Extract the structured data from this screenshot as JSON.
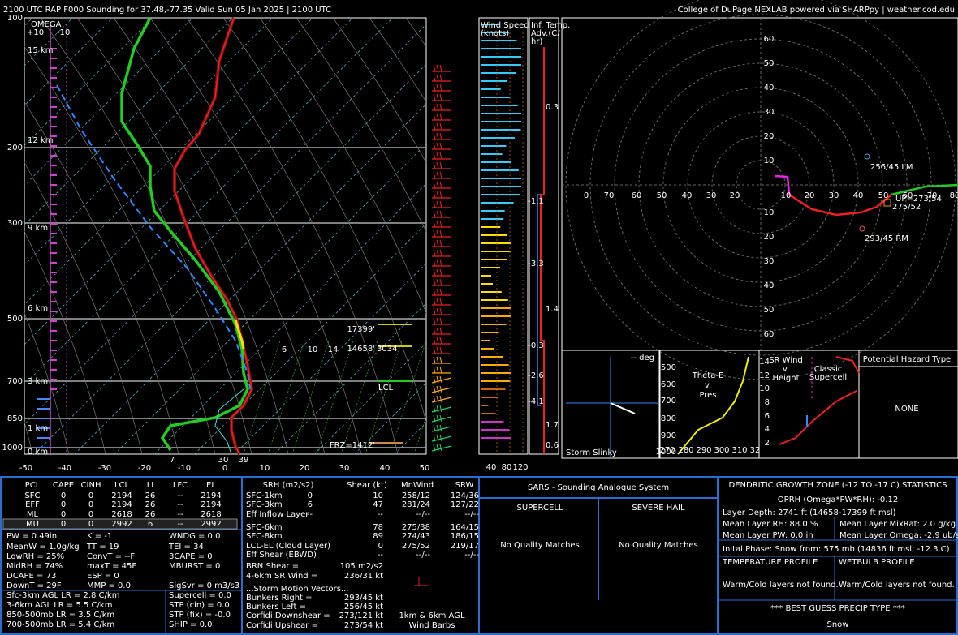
{
  "header": {
    "title": "2100 UTC RAP F000 Sounding for 37.48,-77.35 Valid  Sun 05 Jan 2025 | 2100 UTC",
    "credit": "College of DuPage NEXLAB powered via SHARPpy | weather.cod.edu"
  },
  "skewt": {
    "pressure_labels": [
      "100",
      "200",
      "300",
      "500",
      "700",
      "850",
      "1000"
    ],
    "temp_labels": [
      "-50",
      "-40",
      "-30",
      "-20",
      "-10",
      "0",
      "10",
      "20",
      "30",
      "40",
      "50"
    ],
    "height_labels": [
      "15 km",
      "12 km",
      "9 km",
      "6 km",
      "3 km",
      "1 km",
      "0 km"
    ],
    "omega": {
      "title": "OMEGA",
      "left": "+10",
      "right": "-10"
    },
    "surface": {
      "dewpoint": "7",
      "wetbulb": "30",
      "temp": "39"
    },
    "levels": {
      "el": "17399'",
      "lfc": "14658'",
      "lfc_extra": "3034",
      "lcl": "LCL",
      "frz": "FRZ=1412'"
    },
    "mixing_ratio_labels": [
      "6",
      "10",
      "14"
    ]
  },
  "wind_speed": {
    "title_lines": [
      "Wind Speed",
      "(knots)"
    ],
    "ticks": [
      "40",
      "80",
      "120"
    ]
  },
  "temp_adv": {
    "title_lines": [
      "Inf. Temp.",
      "Adv.(C/",
      "hr)"
    ],
    "labels": [
      "0.3",
      "-1.1",
      "-3.3",
      "1.4",
      "-0.3",
      "-2.6",
      "-4.1",
      "1.7",
      "0.6"
    ]
  },
  "hodograph": {
    "y_labels": [
      "60",
      "50",
      "40",
      "30",
      "20",
      "10",
      "10",
      "20",
      "30",
      "40",
      "50",
      "60"
    ],
    "x_labels": [
      "0",
      "70",
      "60",
      "50",
      "40",
      "30",
      "20",
      "10",
      "20",
      "30",
      "40",
      "50",
      "60",
      "70",
      "80"
    ],
    "left_mover": "256/45 LM",
    "right_mover": "293/45 RM",
    "mean_wind": "275/52",
    "upshear": "UP=273/54"
  },
  "slinky": {
    "deg": "-- deg",
    "title": "Storm Slinky"
  },
  "theta_e": {
    "title_lines": [
      "Theta-E",
      "v.",
      "Pres"
    ],
    "y_labels": [
      "500",
      "600",
      "700",
      "800",
      "900",
      "1000"
    ],
    "x_labels": [
      "270",
      "280",
      "290",
      "300",
      "310",
      "32"
    ]
  },
  "sr_wind": {
    "title_lines": [
      "SR Wind",
      "v.",
      "Height"
    ],
    "note_lines": [
      "Classic",
      "Supercell"
    ],
    "y_labels": [
      "14",
      "12",
      "10",
      "8",
      "6",
      "4",
      "2"
    ]
  },
  "hazard": {
    "title": "Potential Hazard Type",
    "value": "NONE"
  },
  "parcels": {
    "header": [
      "PCL",
      "CAPE",
      "CINH",
      "LCL",
      "LI",
      "LFC",
      "EL"
    ],
    "rows": [
      [
        "SFC",
        "0",
        "0",
        "2194",
        "26",
        "--",
        "2194"
      ],
      [
        "EFF",
        "0",
        "0",
        "2194",
        "26",
        "--",
        "2194"
      ],
      [
        "ML",
        "0",
        "0",
        "2618",
        "26",
        "--",
        "2618"
      ],
      [
        "MU",
        "0",
        "0",
        "2992",
        "6",
        "--",
        "2992"
      ]
    ]
  },
  "indices": {
    "col1": [
      "PW = 0.49in",
      "MeanW = 1.0g/kg",
      "LowRH = 25%",
      "MidRH = 74%",
      "DCAPE = 73",
      "DownT = 29F"
    ],
    "col2": [
      "K = -1",
      "TT = 19",
      "ConvT = --F",
      "maxT = 45F",
      "ESP = 0",
      "MMP = 0.0"
    ],
    "col3": [
      "WNDG = 0.0",
      "TEI = 34",
      "3CAPE = 0",
      "MBURST = 0",
      "SigSvr = 0 m3/s3"
    ]
  },
  "lapse_rates": [
    "Sfc-3km AGL LR = 2.8 C/km",
    "3-6km AGL LR = 5.5 C/km",
    "850-500mb LR = 3.5 C/km",
    "700-500mb LR = 5.4 C/km"
  ],
  "composites": [
    "Supercell = 0.0",
    "STP (cin) = 0.0",
    "STP (fix) = -0.0",
    "SHIP = 0.0"
  ],
  "shear": {
    "header": [
      "SRH (m2/s2)",
      "Shear (kt)",
      "MnWind",
      "SRW"
    ],
    "rows": [
      {
        "label": "SFC-1km",
        "srh": "0",
        "shear": "10",
        "mnwind": "258/12",
        "srw": "124/36"
      },
      {
        "label": "SFC-3km",
        "srh": "6",
        "shear": "47",
        "mnwind": "281/24",
        "srw": "127/22"
      },
      {
        "label": "Eff Inflow Layer",
        "srh": "--",
        "shear": "--",
        "mnwind": "--/--",
        "srw": "--/--"
      },
      {
        "label": "SFC-6km",
        "shear": "78",
        "mnwind": "275/38",
        "srw": "164/15"
      },
      {
        "label": "SFC-8km",
        "shear": "89",
        "mnwind": "274/43",
        "srw": "186/15"
      },
      {
        "label": "LCL-EL (Cloud Layer)",
        "shear": "0",
        "mnwind": "275/52",
        "srw": "219/17"
      },
      {
        "label": "Eff Shear (EBWD)",
        "shear": "--",
        "mnwind": "--/--",
        "srw": "--/--"
      }
    ],
    "brn": {
      "label": "BRN Shear = ",
      "value": "105 m2/s2"
    },
    "sr_wind_46": {
      "label": "4-6km SR Wind = ",
      "value": "236/31 kt"
    },
    "motion_title": "...Storm Motion Vectors...",
    "motions": [
      {
        "label": "Bunkers Right = ",
        "value": "293/45 kt"
      },
      {
        "label": "Bunkers Left = ",
        "value": "256/45 kt"
      },
      {
        "label": "Corfidi Downshear = ",
        "value": "273/121 kt"
      },
      {
        "label": "Corfidi Upshear = ",
        "value": "273/54 kt"
      }
    ],
    "barb_note": [
      "1km & 6km AGL",
      "Wind Barbs"
    ]
  },
  "sars": {
    "title": "SARS - Sounding Analogue System",
    "supercell": "SUPERCELL",
    "hail": "SEVERE HAIL",
    "supercell_result": "No Quality Matches",
    "hail_result": "No Quality Matches"
  },
  "dgz": {
    "title": "DENDRITIC GROWTH ZONE (-12 TO -17 C) STATISTICS",
    "oprh": "OPRH (Omega*PW*RH): -0.12",
    "depth": "Layer Depth: 2741 ft (14658-17399 ft msl)",
    "rh": "Mean Layer RH: 88.0 %",
    "mixrat": "Mean Layer MixRat: 2.0 g/kg",
    "pw": "Mean Layer PW: 0.0 in",
    "omega": "Mean Layer Omega: -2.9 ub/s",
    "phase": "Inital Phase: Snow from: 575 mb (14836 ft msl; -12.3 C)",
    "temp_profile": "TEMPERATURE PROFILE",
    "wetbulb_profile": "WETBULB PROFILE",
    "temp_result": "Warm/Cold layers not found.",
    "wetbulb_result": "Warm/Cold layers not found.",
    "precip_title": "*** BEST GUESS PRECIP TYPE ***",
    "precip": "Snow"
  }
}
